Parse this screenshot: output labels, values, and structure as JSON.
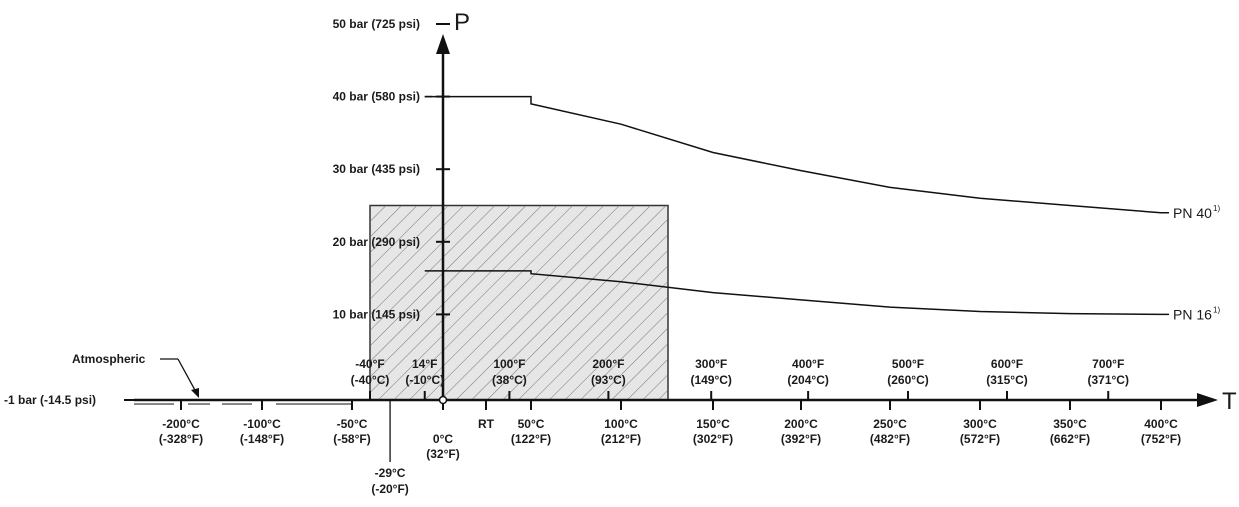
{
  "chart_data": {
    "type": "line",
    "y_axis": {
      "label": "P",
      "ticks": [
        {
          "value": 10,
          "label": "10 bar (145 psi)"
        },
        {
          "value": 20,
          "label": "20 bar (290 psi)"
        },
        {
          "value": 30,
          "label": "30 bar (435 psi)"
        },
        {
          "value": 40,
          "label": "40 bar (580 psi)"
        },
        {
          "value": 50,
          "label": "50 bar (725 psi)"
        }
      ],
      "origin_label": "-1 bar (-14.5 psi)",
      "ylim": [
        -1,
        50
      ]
    },
    "x_axis": {
      "label": "T",
      "xlim_celsius": [
        -240,
        400
      ],
      "celsius_ticks": [
        {
          "value": -200,
          "c": "-200°C",
          "f": "(-328°F)"
        },
        {
          "value": -100,
          "c": "-100°C",
          "f": "(-148°F)"
        },
        {
          "value": -50,
          "c": "-50°C",
          "f": "(-58°F)"
        },
        {
          "value": 0,
          "c": "0°C",
          "f": "(32°F)"
        },
        {
          "value": 50,
          "c": "50°C",
          "f": "(122°F)"
        },
        {
          "value": 100,
          "c": "100°C",
          "f": "(212°F)"
        },
        {
          "value": 150,
          "c": "150°C",
          "f": "(302°F)"
        },
        {
          "value": 200,
          "c": "200°C",
          "f": "(392°F)"
        },
        {
          "value": 250,
          "c": "250°C",
          "f": "(482°F)"
        },
        {
          "value": 300,
          "c": "300°C",
          "f": "(572°F)"
        },
        {
          "value": 350,
          "c": "350°C",
          "f": "(662°F)"
        },
        {
          "value": 400,
          "c": "400°C",
          "f": "(752°F)"
        }
      ],
      "fahrenheit_ticks": [
        {
          "value": -40,
          "f": "-40°F",
          "c": "(-40°C)"
        },
        {
          "value": -10,
          "f": "14°F",
          "c": "(-10°C)"
        },
        {
          "value": 38,
          "f": "100°F",
          "c": "(38°C)"
        },
        {
          "value": 93,
          "f": "200°F",
          "c": "(93°C)"
        },
        {
          "value": 149,
          "f": "300°F",
          "c": "(149°C)"
        },
        {
          "value": 204,
          "f": "400°F",
          "c": "(204°C)"
        },
        {
          "value": 260,
          "f": "500°F",
          "c": "(260°C)"
        },
        {
          "value": 315,
          "f": "600°F",
          "c": "(315°C)"
        },
        {
          "value": 371,
          "f": "700°F",
          "c": "(371°C)"
        }
      ],
      "extra_ticks": [
        {
          "value": 25,
          "label": "RT"
        },
        {
          "value": -29,
          "c": "-29°C",
          "f": "(-20°F)"
        }
      ]
    },
    "series": [
      {
        "name": "PN 40",
        "superscript": "1)",
        "points": [
          [
            -10,
            40
          ],
          [
            50,
            40
          ],
          [
            50,
            39
          ],
          [
            100,
            36.2
          ],
          [
            150,
            32.3
          ],
          [
            200,
            29.8
          ],
          [
            250,
            27.5
          ],
          [
            300,
            26
          ],
          [
            350,
            25
          ],
          [
            400,
            24
          ]
        ]
      },
      {
        "name": "PN 16",
        "superscript": "1)",
        "points": [
          [
            -10,
            16
          ],
          [
            50,
            16
          ],
          [
            50,
            15.6
          ],
          [
            100,
            14.5
          ],
          [
            150,
            13
          ],
          [
            200,
            12
          ],
          [
            250,
            11
          ],
          [
            300,
            10.4
          ],
          [
            350,
            10.1
          ],
          [
            400,
            10
          ]
        ]
      }
    ],
    "hatched_region": {
      "x_range": [
        -40,
        125
      ],
      "y_range": [
        -1,
        25
      ]
    },
    "annotations": [
      {
        "text": "Atmospheric",
        "points_to": "negative-pressure segment"
      }
    ]
  }
}
